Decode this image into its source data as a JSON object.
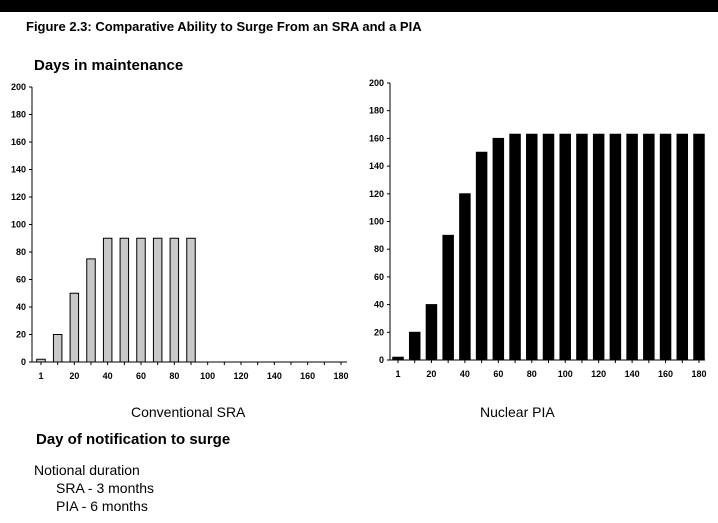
{
  "header": {
    "figure_title": "Figure 2.3: Comparative Ability to Surge From an SRA and a PIA"
  },
  "ylabel": "Days in maintenance",
  "xlabel": "Day of notification to surge",
  "notional": {
    "heading": "Notional duration",
    "lines": [
      "SRA - 3 months",
      "PIA - 6 months"
    ]
  },
  "colors": {
    "sra_fill": "#c8c8c8",
    "pia_fill": "#000000"
  },
  "chart_data": [
    {
      "type": "bar",
      "caption": "Conventional SRA",
      "x": [
        1,
        10,
        20,
        30,
        40,
        50,
        60,
        70,
        80,
        90,
        100,
        110,
        120,
        130,
        140,
        150,
        160,
        170,
        180
      ],
      "values": [
        2,
        20,
        50,
        75,
        90,
        90,
        90,
        90,
        90,
        90,
        0,
        0,
        0,
        0,
        0,
        0,
        0,
        0,
        0
      ],
      "xticks": [
        1,
        20,
        40,
        60,
        80,
        100,
        120,
        140,
        160,
        180
      ],
      "yticks": [
        0,
        20,
        40,
        60,
        80,
        100,
        120,
        140,
        160,
        180,
        200
      ],
      "ylim": [
        0,
        200
      ]
    },
    {
      "type": "bar",
      "caption": "Nuclear PIA",
      "x": [
        1,
        10,
        20,
        30,
        40,
        50,
        60,
        70,
        80,
        90,
        100,
        110,
        120,
        130,
        140,
        150,
        160,
        170,
        180
      ],
      "values": [
        2,
        20,
        40,
        90,
        120,
        150,
        160,
        163,
        163,
        163,
        163,
        163,
        163,
        163,
        163,
        163,
        163,
        163,
        163
      ],
      "xticks": [
        1,
        20,
        40,
        60,
        80,
        100,
        120,
        140,
        160,
        180
      ],
      "yticks": [
        0,
        20,
        40,
        60,
        80,
        100,
        120,
        140,
        160,
        180,
        200
      ],
      "ylim": [
        0,
        200
      ]
    }
  ]
}
